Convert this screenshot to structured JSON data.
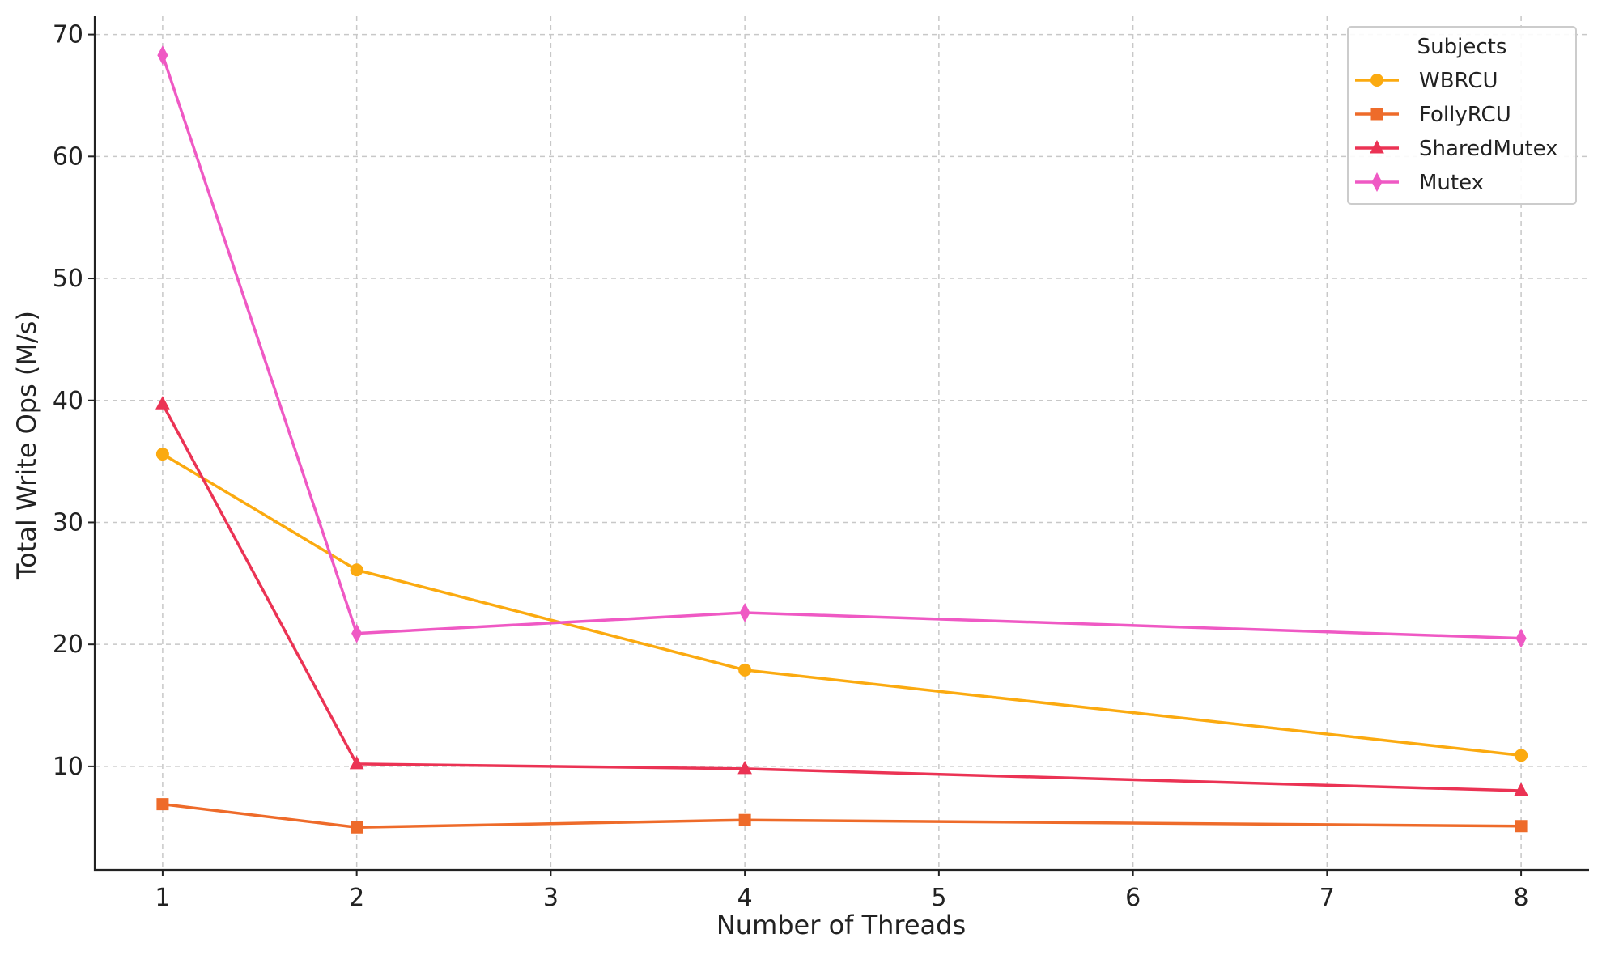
{
  "chart_data": {
    "type": "line",
    "title": "",
    "xlabel": "Number of Threads",
    "ylabel": "Total Write Ops (M/s)",
    "x": [
      1,
      2,
      4,
      8
    ],
    "xticks": [
      1,
      2,
      3,
      4,
      5,
      6,
      7,
      8
    ],
    "yticks": [
      10,
      20,
      30,
      40,
      50,
      60,
      70
    ],
    "xlim": [
      0.65,
      8.35
    ],
    "ylim": [
      1.5,
      71.5
    ],
    "grid": true,
    "legend": {
      "title": "Subjects",
      "position": "top-right"
    },
    "series": [
      {
        "name": "WBRCU",
        "color": "#FBAA10",
        "marker": "circle",
        "values": [
          35.6,
          26.1,
          17.9,
          10.9
        ]
      },
      {
        "name": "FollyRCU",
        "color": "#EE6B2A",
        "marker": "square",
        "values": [
          6.9,
          5.0,
          5.6,
          5.1
        ]
      },
      {
        "name": "SharedMutex",
        "color": "#EB3354",
        "marker": "triangle",
        "values": [
          39.7,
          10.2,
          9.8,
          8.0
        ]
      },
      {
        "name": "Mutex",
        "color": "#EF59C4",
        "marker": "diamond",
        "values": [
          68.3,
          20.9,
          22.6,
          20.5
        ]
      }
    ]
  }
}
